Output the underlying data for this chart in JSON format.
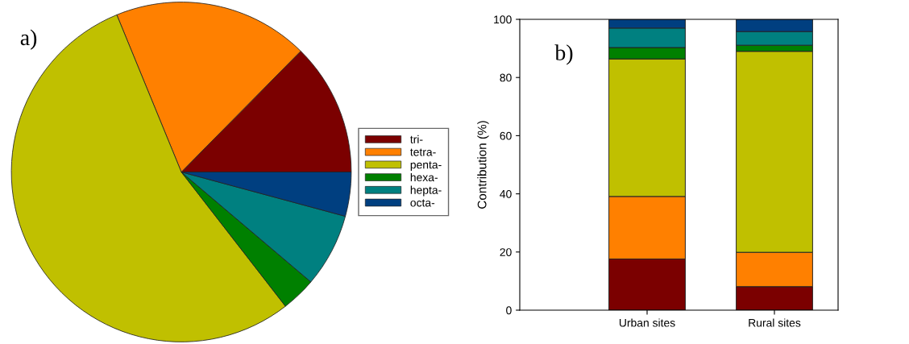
{
  "chart_data": [
    {
      "type": "pie",
      "categories": [
        "tri-",
        "tetra-",
        "penta-",
        "hexa-",
        "hepta-",
        "octa-"
      ],
      "values": [
        12.6,
        18.6,
        54.3,
        3.3,
        7.0,
        4.2
      ],
      "colors": [
        "#7b0000",
        "#ff8000",
        "#c0c000",
        "#008000",
        "#008080",
        "#003f80"
      ],
      "legend": "right",
      "annotations": [
        "a)"
      ]
    },
    {
      "type": "bar",
      "stacked": true,
      "categories": [
        "Urban sites",
        "Rural sites"
      ],
      "ylabel": "Contribution (%)",
      "ylim": [
        0,
        100
      ],
      "yticks": [
        0,
        20,
        40,
        60,
        80,
        100
      ],
      "annotations": [
        "b)"
      ],
      "series": [
        {
          "color": "#7b0000",
          "values": [
            17.6,
            8.1
          ]
        },
        {
          "color": "#ff8000",
          "values": [
            21.5,
            11.8
          ]
        },
        {
          "color": "#c0c000",
          "values": [
            47.3,
            69.1
          ]
        },
        {
          "color": "#008000",
          "values": [
            3.9,
            2.1
          ]
        },
        {
          "color": "#008080",
          "values": [
            6.7,
            4.7
          ]
        },
        {
          "color": "#003f80",
          "values": [
            3.0,
            4.2
          ]
        }
      ]
    }
  ]
}
